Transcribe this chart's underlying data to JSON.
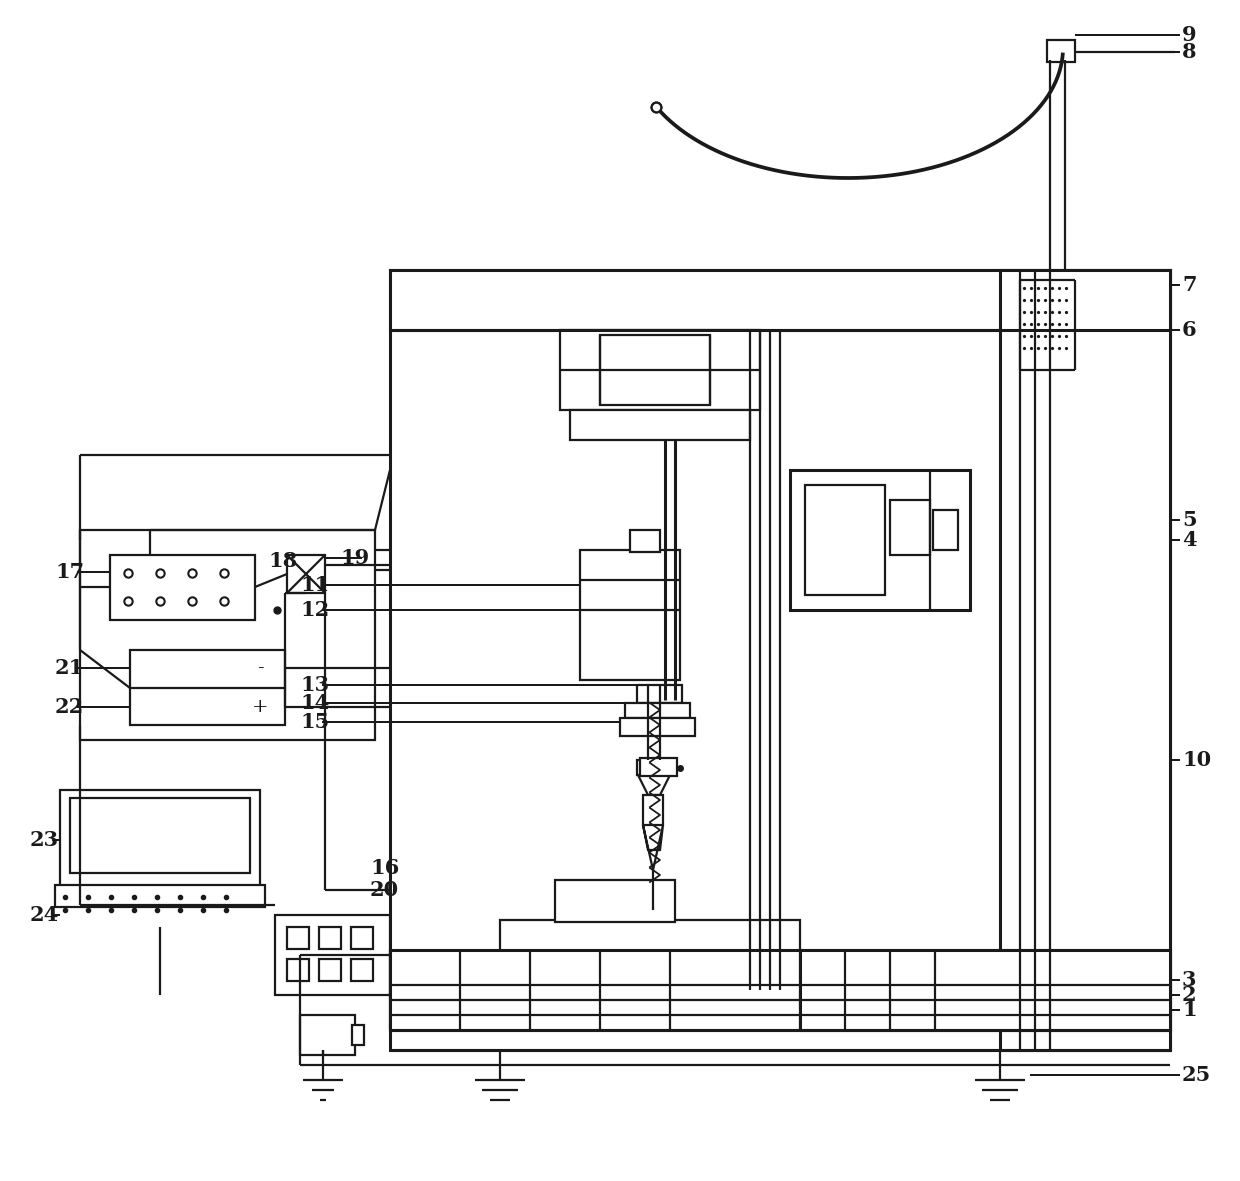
{
  "bg_color": "#ffffff",
  "line_color": "#1a1a1a",
  "lw": 1.6,
  "lw_thick": 2.2,
  "font_size": 15
}
